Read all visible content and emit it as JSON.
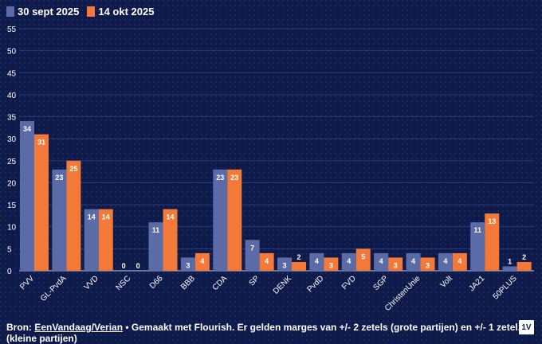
{
  "legend": {
    "series_a": "30 sept 2025",
    "series_b": "14 okt 2025"
  },
  "colors": {
    "series_a": "#5b6ba8",
    "series_b": "#f37938",
    "background": "#0e1a4a",
    "grid": "#2a3a78"
  },
  "chart_data": {
    "type": "bar",
    "title": "",
    "xlabel": "",
    "ylabel": "",
    "ylim": [
      0,
      55
    ],
    "yticks": [
      0,
      5,
      10,
      15,
      20,
      25,
      30,
      35,
      40,
      45,
      50,
      55
    ],
    "legend_position": "top-left",
    "categories": [
      "PVV",
      "GL-PvdA",
      "VVD",
      "NSC",
      "D66",
      "BBB",
      "CDA",
      "SP",
      "DENK",
      "PvdD",
      "FVD",
      "SGP",
      "ChristenUnie",
      "Volt",
      "JA21",
      "50PLUS"
    ],
    "series": [
      {
        "name": "30 sept 2025",
        "values": [
          34,
          23,
          14,
          0,
          11,
          3,
          23,
          7,
          3,
          4,
          4,
          4,
          4,
          4,
          11,
          1
        ]
      },
      {
        "name": "14 okt 2025",
        "values": [
          31,
          25,
          14,
          0,
          14,
          4,
          23,
          4,
          2,
          3,
          5,
          3,
          3,
          4,
          13,
          2
        ]
      }
    ]
  },
  "footer": {
    "prefix": "Bron: ",
    "link": "EenVandaag/Verian",
    "suffix": " • Gemaakt met Flourish. Er gelden marges van +/- 2 zetels (grote partijen) en +/- 1 zetel. (kleine partijen)"
  },
  "logo": "1V"
}
